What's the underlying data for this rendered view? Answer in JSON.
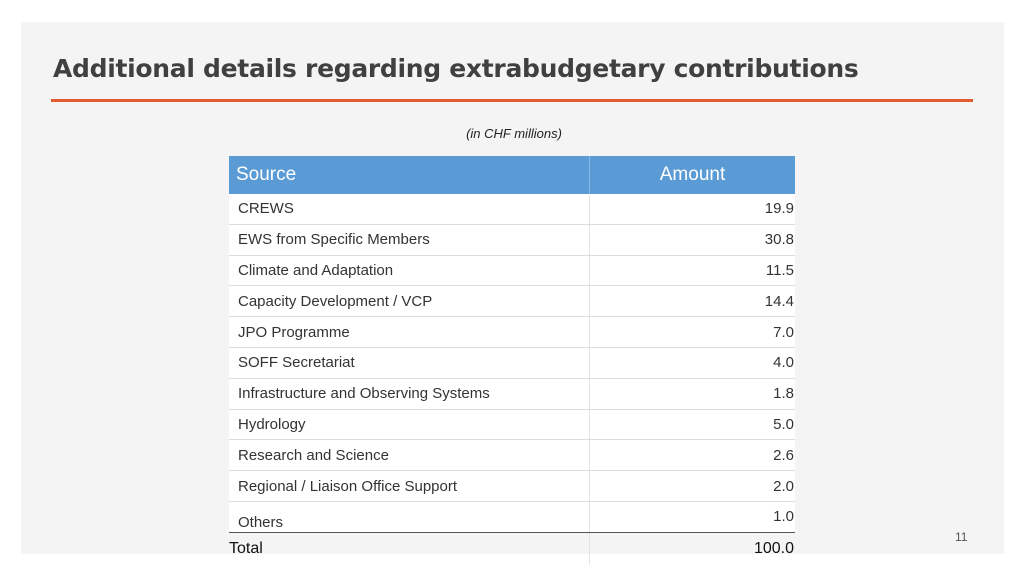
{
  "slide": {
    "title": "Additional details regarding extrabudgetary contributions",
    "unit_note": "(in CHF millions)",
    "page_number": "11",
    "accent_color": "#e15b2f",
    "header_color": "#5b9bd5"
  },
  "table": {
    "headers": {
      "source": "Source",
      "amount": "Amount"
    },
    "rows": [
      {
        "source": "CREWS",
        "amount": "19.9"
      },
      {
        "source": "EWS from Specific Members",
        "amount": "30.8"
      },
      {
        "source": "Climate and Adaptation",
        "amount": "11.5"
      },
      {
        "source": "Capacity Development / VCP",
        "amount": "14.4"
      },
      {
        "source": "JPO Programme",
        "amount": "7.0"
      },
      {
        "source": "SOFF Secretariat",
        "amount": "4.0"
      },
      {
        "source": "Infrastructure and Observing Systems",
        "amount": "1.8"
      },
      {
        "source": "Hydrology",
        "amount": "5.0"
      },
      {
        "source": "Research and Science",
        "amount": "2.6"
      },
      {
        "source": "Regional / Liaison Office Support",
        "amount": "2.0"
      },
      {
        "source": "Others",
        "amount": "1.0"
      }
    ],
    "total": {
      "label": "Total",
      "amount": "100.0"
    }
  }
}
